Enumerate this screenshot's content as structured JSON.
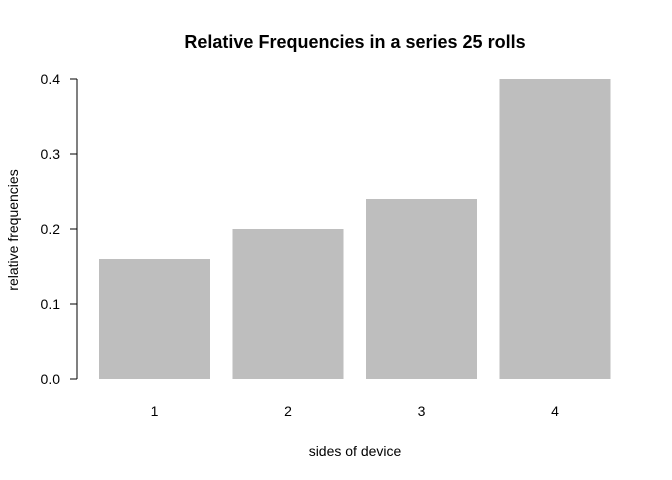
{
  "chart_data": {
    "type": "bar",
    "title": "Relative Frequencies in a series 25 rolls",
    "xlabel": "sides of device",
    "ylabel": "relative frequencies",
    "categories": [
      "1",
      "2",
      "3",
      "4"
    ],
    "values": [
      0.16,
      0.2,
      0.24,
      0.4
    ],
    "ylim": [
      0,
      0.4
    ],
    "yticks": [
      "0.0",
      "0.1",
      "0.2",
      "0.3",
      "0.4"
    ],
    "grid": false,
    "bar_color": "#bebebe"
  }
}
